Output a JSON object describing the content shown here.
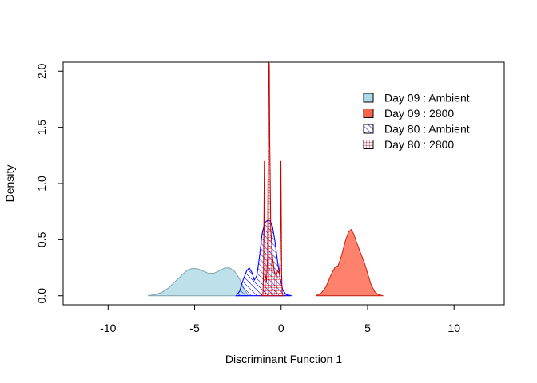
{
  "chart_data": {
    "type": "area",
    "title": "",
    "xlabel": "Discriminant Function 1",
    "ylabel": "Density",
    "xlim": [
      -12.6,
      12.9
    ],
    "ylim": [
      -0.08,
      2.08
    ],
    "xticks": [
      -10,
      -5,
      0,
      5,
      10
    ],
    "xtick_labels": [
      "-10",
      "-5",
      "0",
      "5",
      "10"
    ],
    "yticks": [
      0.0,
      0.5,
      1.0,
      1.5,
      2.0
    ],
    "ytick_labels": [
      "0.0",
      "0.5",
      "1.0",
      "1.5",
      "2.0"
    ],
    "grid": false,
    "legend_position": "top-right",
    "series": [
      {
        "name": "Day 09 : Ambient",
        "fill": "#add8e6",
        "stroke": "#87a9b4",
        "hatch": "none",
        "x": [
          -7.7,
          -7.3,
          -6.9,
          -6.5,
          -6.1,
          -5.7,
          -5.4,
          -5.1,
          -4.8,
          -4.5,
          -4.2,
          -3.9,
          -3.6,
          -3.3,
          -3.0,
          -2.7,
          -2.4,
          -2.1,
          -1.9
        ],
        "y": [
          0.0,
          0.01,
          0.03,
          0.07,
          0.13,
          0.19,
          0.23,
          0.245,
          0.24,
          0.22,
          0.2,
          0.2,
          0.22,
          0.245,
          0.25,
          0.22,
          0.15,
          0.05,
          0.0
        ]
      },
      {
        "name": "Day 09 : 2800",
        "fill": "#ff6347",
        "stroke": "#cc2a1a",
        "hatch": "none",
        "x": [
          2.0,
          2.3,
          2.6,
          2.9,
          3.1,
          3.3,
          3.5,
          3.7,
          3.9,
          4.05,
          4.2,
          4.4,
          4.6,
          4.8,
          5.0,
          5.2,
          5.4,
          5.6,
          5.9
        ],
        "y": [
          0.0,
          0.02,
          0.08,
          0.19,
          0.25,
          0.27,
          0.36,
          0.48,
          0.57,
          0.59,
          0.55,
          0.46,
          0.38,
          0.3,
          0.2,
          0.1,
          0.04,
          0.01,
          0.0
        ]
      },
      {
        "name": "Day 80 : Ambient",
        "fill": "#0000ff",
        "stroke": "#0000ff",
        "hatch": "diagonal",
        "x": [
          -2.6,
          -2.4,
          -2.2,
          -2.0,
          -1.85,
          -1.7,
          -1.55,
          -1.4,
          -1.25,
          -1.1,
          -0.95,
          -0.8,
          -0.65,
          -0.5,
          -0.35,
          -0.2,
          -0.05,
          0.1,
          0.3,
          0.6
        ],
        "y": [
          0.0,
          0.04,
          0.14,
          0.22,
          0.25,
          0.21,
          0.14,
          0.18,
          0.35,
          0.55,
          0.65,
          0.67,
          0.67,
          0.62,
          0.48,
          0.3,
          0.15,
          0.05,
          0.01,
          0.0
        ]
      },
      {
        "name": "Day 80 : 2800",
        "fill": "#ff6b6b",
        "stroke": "#cc0000",
        "hatch": "grid",
        "x": [
          -1.15,
          -1.05,
          -1.02,
          -0.99,
          -0.97,
          -0.95,
          -0.92,
          -0.85,
          -0.78,
          -0.74,
          -0.72,
          -0.7,
          -0.68,
          -0.66,
          -0.6,
          -0.5,
          -0.4,
          -0.3,
          -0.2,
          -0.1,
          -0.06,
          -0.03,
          -0.01,
          0.01,
          0.03,
          0.06,
          0.12
        ],
        "y": [
          0.0,
          0.02,
          0.2,
          0.7,
          1.2,
          0.7,
          0.2,
          0.12,
          0.35,
          1.4,
          2.05,
          2.08,
          2.05,
          1.4,
          0.6,
          0.35,
          0.22,
          0.18,
          0.22,
          0.2,
          0.3,
          0.7,
          1.2,
          0.7,
          0.2,
          0.02,
          0.0
        ]
      }
    ]
  }
}
